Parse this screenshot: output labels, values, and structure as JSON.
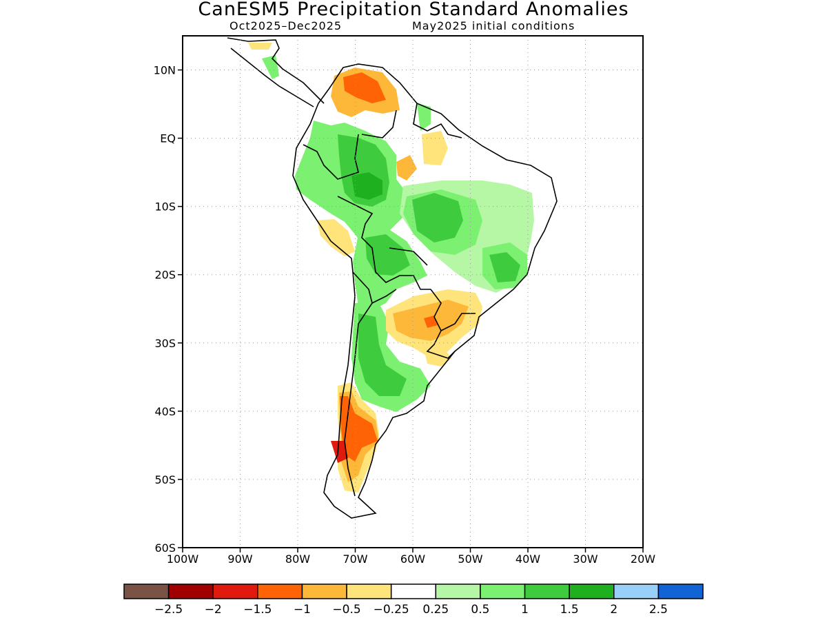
{
  "title": "CanESM5 Precipitation Standard Anomalies",
  "period": "Oct2025–Dec2025",
  "initial_conditions": "May2025 initial conditions",
  "map": {
    "lon_range": [
      -100,
      -20
    ],
    "lat_range": [
      -60,
      15
    ],
    "lat_ticks": [
      {
        "lat": 10,
        "label": "10N"
      },
      {
        "lat": 0,
        "label": "EQ"
      },
      {
        "lat": -10,
        "label": "10S"
      },
      {
        "lat": -20,
        "label": "20S"
      },
      {
        "lat": -30,
        "label": "30S"
      },
      {
        "lat": -40,
        "label": "40S"
      },
      {
        "lat": -50,
        "label": "50S"
      },
      {
        "lat": -60,
        "label": "60S"
      }
    ],
    "lon_ticks": [
      {
        "lon": -100,
        "label": "100W"
      },
      {
        "lon": -90,
        "label": "90W"
      },
      {
        "lon": -80,
        "label": "80W"
      },
      {
        "lon": -70,
        "label": "70W"
      },
      {
        "lon": -60,
        "label": "60W"
      },
      {
        "lon": -50,
        "label": "50W"
      },
      {
        "lon": -40,
        "label": "40W"
      },
      {
        "lon": -30,
        "label": "30W"
      },
      {
        "lon": -20,
        "label": "20W"
      }
    ]
  },
  "colorbar": {
    "colors": [
      "#7a5246",
      "#a00000",
      "#e01a0e",
      "#fe6405",
      "#feb839",
      "#fee47a",
      "#ffffff",
      "#b5f7a4",
      "#7bf071",
      "#3ecc3e",
      "#1fb01f",
      "#98d0fa",
      "#1064d6"
    ],
    "labels": [
      "−2.5",
      "−2",
      "−1.5",
      "−1",
      "−0.5",
      "−0.25",
      "0.25",
      "0.5",
      "1",
      "1.5",
      "2",
      "2.5"
    ]
  }
}
